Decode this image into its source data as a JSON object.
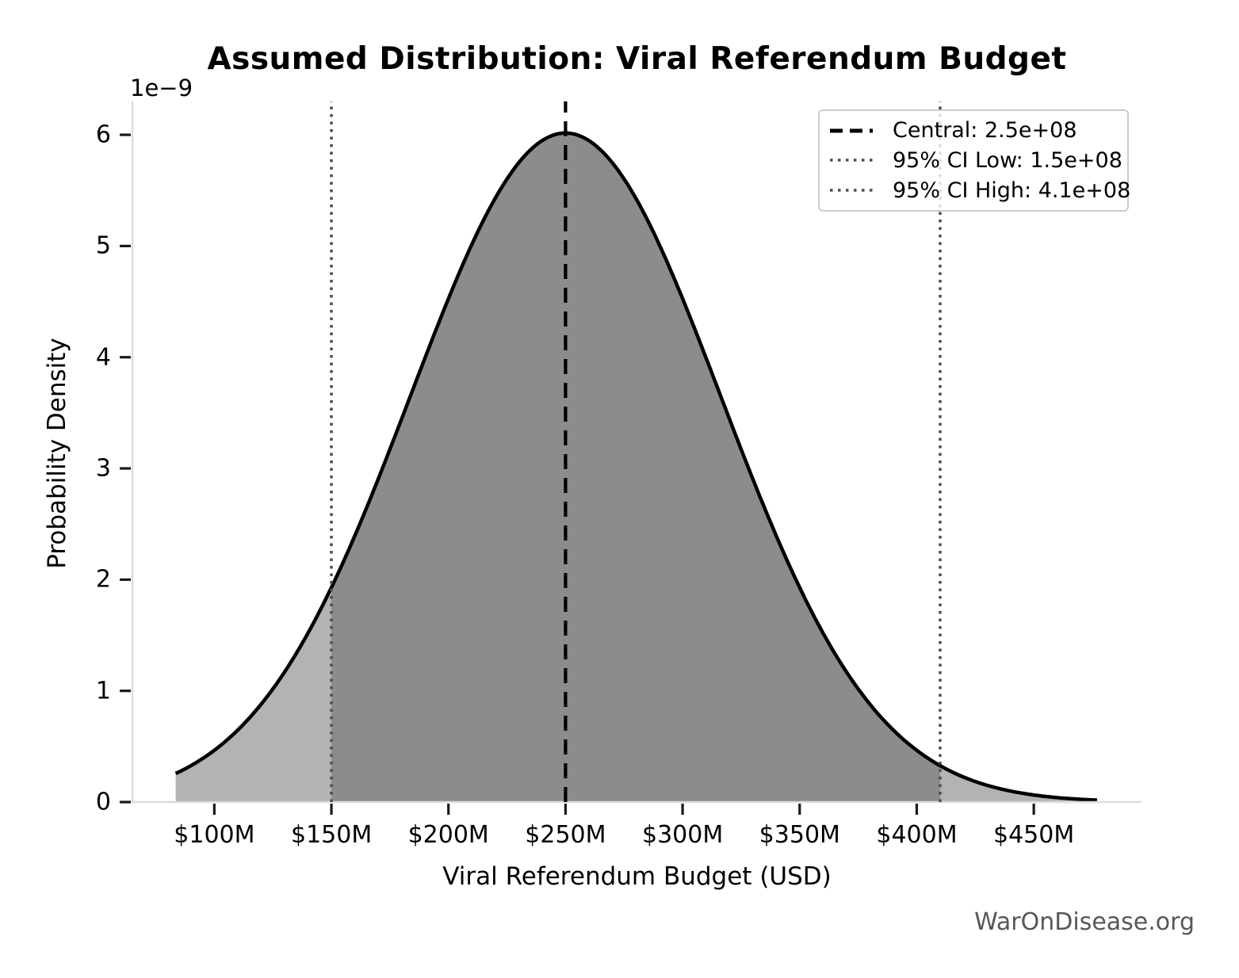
{
  "title": "Assumed Distribution: Viral Referendum Budget",
  "watermark": "WarOnDisease.org",
  "axes": {
    "x_label": "Viral Referendum Budget (USD)",
    "y_label": "Probability Density",
    "y_offset_text": "1e−9",
    "x_ticks": [
      "$100M",
      "$150M",
      "$200M",
      "$250M",
      "$300M",
      "$350M",
      "$400M",
      "$450M"
    ],
    "y_ticks": [
      "0",
      "1",
      "2",
      "3",
      "4",
      "5",
      "6"
    ]
  },
  "legend": {
    "items": [
      {
        "label": "Central: 2.5e+08",
        "style": "dashed",
        "color": "#000000"
      },
      {
        "label": "95% CI Low: 1.5e+08",
        "style": "dotted",
        "color": "#4d4d4d"
      },
      {
        "label": "95% CI High: 4.1e+08",
        "style": "dotted",
        "color": "#4d4d4d"
      }
    ]
  },
  "chart_data": {
    "type": "area",
    "subtype": "probability-density-curve",
    "distribution": "normal",
    "title": "Assumed Distribution: Viral Referendum Budget",
    "xlabel": "Viral Referendum Budget (USD)",
    "ylabel": "Probability Density",
    "y_scale_factor": "1e-9",
    "central": 250000000.0,
    "ci_low": 150000000.0,
    "ci_high": 410000000.0,
    "mean": 250000000.0,
    "sigma": 66300000.0,
    "peak_density": 6.016e-09,
    "x_data_range": [
      83500000.0,
      477000000.0
    ],
    "xlim": [
      65000000.0,
      496000000.0
    ],
    "ylim": [
      0,
      6.3e-09
    ],
    "x_tick_values": [
      100000000.0,
      150000000.0,
      200000000.0,
      250000000.0,
      300000000.0,
      350000000.0,
      400000000.0,
      450000000.0
    ],
    "y_tick_values": [
      0,
      1e-09,
      2e-09,
      3e-09,
      4e-09,
      5e-09,
      6e-09
    ],
    "grid": false,
    "legend_position": "upper right",
    "sampled_curve": {
      "x_M": [
        83.5,
        100,
        125,
        150,
        175,
        200,
        225,
        250,
        275,
        300,
        325,
        350,
        375,
        400,
        410,
        425,
        450,
        477
      ],
      "density_1e9": [
        0.26,
        0.47,
        1.02,
        1.93,
        3.17,
        4.53,
        5.6,
        6.02,
        5.6,
        4.53,
        3.17,
        1.93,
        1.02,
        0.47,
        0.32,
        0.18,
        0.06,
        0.02
      ]
    },
    "colors": {
      "fill_light": "#b3b3b3",
      "fill_dark": "#8c8c8c",
      "curve": "#000000",
      "central_line": "#000000",
      "ci_line": "#4d4d4d",
      "spine": "#dcdcdc",
      "tick": "#1a1a1a"
    }
  }
}
